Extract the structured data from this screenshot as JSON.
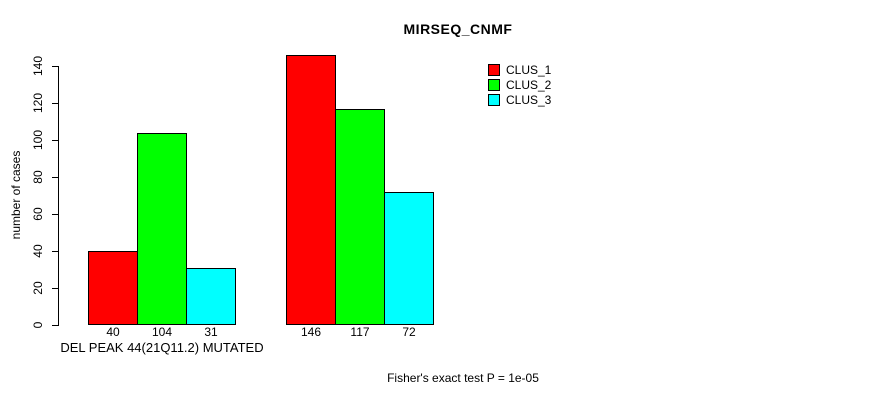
{
  "chart_data": {
    "type": "bar",
    "title": "MIRSEQ_CNMF",
    "xlabel": "",
    "ylabel": "number of cases",
    "ylim": [
      0,
      140
    ],
    "yticks": [
      0,
      20,
      40,
      60,
      80,
      100,
      120,
      140
    ],
    "grid": false,
    "legend_position": "top-right",
    "categories": [
      "DEL PEAK 44(21Q11.2) MUTATED",
      ""
    ],
    "series": [
      {
        "name": "CLUS_1",
        "color": "#ff0000",
        "values": [
          40,
          146
        ]
      },
      {
        "name": "CLUS_2",
        "color": "#00ff00",
        "values": [
          104,
          117
        ]
      },
      {
        "name": "CLUS_3",
        "color": "#00ffff",
        "values": [
          31,
          72
        ]
      }
    ],
    "bar_value_labels": [
      [
        40,
        104,
        31
      ],
      [
        146,
        117,
        72
      ]
    ],
    "annotation": "Fisher's exact test P = 1e-05"
  },
  "colors": {
    "background": "#ffffff",
    "axis": "#000000",
    "text": "#000000"
  }
}
